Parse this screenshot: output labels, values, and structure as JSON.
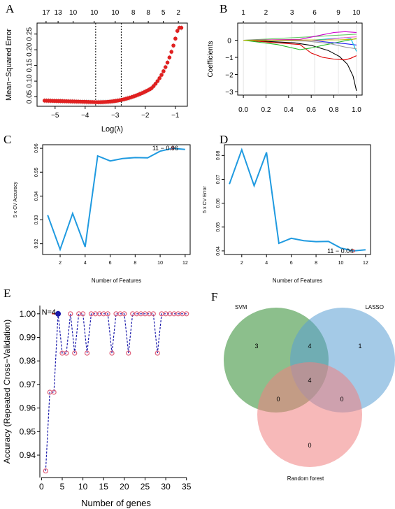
{
  "panels": {
    "A": {
      "letter": "A"
    },
    "B": {
      "letter": "B"
    },
    "C": {
      "letter": "C"
    },
    "D": {
      "letter": "D"
    },
    "E": {
      "letter": "E"
    },
    "F": {
      "letter": "F"
    }
  },
  "chart_data": [
    {
      "id": "A",
      "type": "scatter",
      "xlabel": "Log(λ)",
      "ylabel": "Mean−Squared Error",
      "xlim": [
        -5.6,
        -0.6
      ],
      "ylim": [
        0.02,
        0.285
      ],
      "xticks": [
        -5,
        -4,
        -3,
        -2,
        -1
      ],
      "yticks": [
        0.05,
        0.1,
        0.15,
        0.2,
        0.25
      ],
      "top_xticks": [
        -5.3,
        -4.9,
        -4.4,
        -3.7,
        -3.0,
        -2.4,
        -1.9,
        -1.4,
        -0.9
      ],
      "top_labels": [
        "17",
        "13",
        "10",
        "10",
        "10",
        "8",
        "8",
        "5",
        "2"
      ],
      "vlines": [
        -3.65,
        -2.8
      ],
      "points_x_start": -5.35,
      "points_x_end": -0.8,
      "n_points": 70,
      "curve_note": "",
      "color": "#e02020"
    },
    {
      "id": "B",
      "type": "line",
      "xlabel": "",
      "ylabel": "Coefficients",
      "xlim": [
        -0.05,
        1.05
      ],
      "ylim": [
        -3.2,
        1.0
      ],
      "xticks": [
        0.0,
        0.2,
        0.4,
        0.6,
        0.8,
        1.0
      ],
      "xtick_labels": [
        "0.0",
        "0.2",
        "0.4",
        "0.6",
        "0.8",
        "1.0"
      ],
      "yticks": [
        -3,
        -2,
        -1,
        0
      ],
      "ytick_labels": [
        "−3",
        "−2",
        "−1",
        "0"
      ],
      "top_xticks": [
        0.0,
        0.2,
        0.43,
        0.63,
        0.84,
        1.0
      ],
      "top_labels": [
        "1",
        "2",
        "3",
        "6",
        "9",
        "10"
      ],
      "series": [
        {
          "color": "#000000",
          "x": [
            0.0,
            0.45,
            0.6,
            0.75,
            0.85,
            0.92,
            0.97,
            1.0
          ],
          "y": [
            0,
            -0.15,
            -0.3,
            -0.6,
            -0.95,
            -1.4,
            -2.1,
            -2.95
          ]
        },
        {
          "color": "#dd0000",
          "x": [
            0.0,
            0.5,
            0.6,
            0.7,
            0.8,
            0.9,
            0.95,
            1.0
          ],
          "y": [
            0,
            -0.25,
            -0.75,
            -1.0,
            -1.1,
            -1.15,
            -1.05,
            -0.9
          ]
        },
        {
          "color": "#22bb22",
          "x": [
            0.0,
            0.3,
            0.5,
            0.6,
            0.7,
            0.85,
            1.0
          ],
          "y": [
            0,
            -0.25,
            -0.55,
            -0.45,
            -0.3,
            -0.1,
            0.1
          ]
        },
        {
          "color": "#66cc66",
          "x": [
            0.0,
            0.3,
            0.6,
            0.8,
            1.0
          ],
          "y": [
            0,
            0.1,
            0.2,
            0.28,
            0.35
          ]
        },
        {
          "color": "#cc00cc",
          "x": [
            0.0,
            0.5,
            0.6,
            0.7,
            0.8,
            0.9,
            1.0
          ],
          "y": [
            0,
            0.05,
            0.18,
            0.32,
            0.45,
            0.5,
            0.45
          ]
        },
        {
          "color": "#2222ee",
          "x": [
            0.0,
            0.6,
            0.7,
            0.8,
            0.9,
            1.0
          ],
          "y": [
            0,
            0,
            -0.08,
            -0.15,
            -0.2,
            -0.28
          ]
        },
        {
          "color": "#00bbdd",
          "x": [
            0.0,
            0.6,
            0.7,
            0.8,
            0.9,
            0.95,
            1.0
          ],
          "y": [
            0,
            0,
            0.05,
            0.1,
            0.15,
            0.1,
            -0.65
          ]
        },
        {
          "color": "#999999",
          "x": [
            0.0,
            0.55,
            0.75,
            0.9,
            1.0
          ],
          "y": [
            0,
            -0.05,
            -0.18,
            -0.4,
            -0.5
          ]
        },
        {
          "color": "#ff66cc",
          "x": [
            0.0,
            0.7,
            0.8,
            0.9,
            1.0
          ],
          "y": [
            0,
            0,
            0.08,
            0.15,
            0.2
          ]
        },
        {
          "color": "#bbbb00",
          "x": [
            0.0,
            0.85,
            0.95,
            1.0
          ],
          "y": [
            0,
            0.02,
            0.05,
            0.08
          ]
        }
      ],
      "vlines": [
        0.0,
        0.2,
        0.43,
        0.63,
        0.84,
        1.0
      ]
    },
    {
      "id": "C",
      "type": "line",
      "xlabel": "Number of Features",
      "ylabel": "5 x CV Accuracy",
      "xlim": [
        0.6,
        12.4
      ],
      "ylim": [
        0.9155,
        0.9615
      ],
      "xticks": [
        2,
        4,
        6,
        8,
        10,
        12
      ],
      "yticks": [
        0.92,
        0.93,
        0.94,
        0.95,
        0.96
      ],
      "x": [
        1,
        2,
        3,
        4,
        5,
        6,
        7,
        8,
        9,
        10,
        11,
        12
      ],
      "y": [
        0.932,
        0.9176,
        0.9327,
        0.9187,
        0.9568,
        0.9547,
        0.9557,
        0.9561,
        0.956,
        0.9588,
        0.96,
        0.9595
      ],
      "annotation": "11 − 0.96",
      "color": "#1f9ae0"
    },
    {
      "id": "D",
      "type": "line",
      "xlabel": "Number of Features",
      "ylabel": "5 x CV Error",
      "xlim": [
        0.6,
        12.4
      ],
      "ylim": [
        0.0385,
        0.0845
      ],
      "xticks": [
        2,
        4,
        6,
        8,
        10,
        12
      ],
      "yticks": [
        0.04,
        0.05,
        0.06,
        0.07,
        0.08
      ],
      "x": [
        1,
        2,
        3,
        4,
        5,
        6,
        7,
        8,
        9,
        10,
        11,
        12
      ],
      "y": [
        0.068,
        0.0824,
        0.0673,
        0.0813,
        0.0432,
        0.0453,
        0.0443,
        0.0439,
        0.044,
        0.0412,
        0.04,
        0.0405
      ],
      "annotation": "11 − 0.04",
      "color": "#1f9ae0"
    },
    {
      "id": "E",
      "type": "line",
      "xlabel": "Number of genes",
      "ylabel": "Accuracy (Repeated Cross−Validation)",
      "xlim": [
        -0.4,
        36.4
      ],
      "ylim": [
        0.9305,
        1.0035
      ],
      "xticks": [
        0,
        5,
        10,
        15,
        20,
        25,
        30,
        35
      ],
      "yticks": [
        0.94,
        0.95,
        0.96,
        0.97,
        0.98,
        0.99,
        1.0
      ],
      "x": [
        1,
        2,
        3,
        4,
        5,
        6,
        7,
        8,
        9,
        10,
        11,
        12,
        13,
        14,
        15,
        16,
        17,
        18,
        19,
        20,
        21,
        22,
        23,
        24,
        25,
        26,
        27,
        28,
        29,
        30,
        31,
        32,
        33,
        34,
        35
      ],
      "y": [
        0.9333,
        0.9667,
        0.9667,
        1.0,
        0.9833,
        0.9833,
        1.0,
        0.9833,
        1.0,
        1.0,
        0.9833,
        1.0,
        1.0,
        1.0,
        1.0,
        1.0,
        0.9833,
        1.0,
        1.0,
        1.0,
        0.9833,
        1.0,
        1.0,
        1.0,
        1.0,
        1.0,
        1.0,
        0.9833,
        1.0,
        1.0,
        1.0,
        1.0,
        1.0,
        1.0,
        1.0
      ],
      "annotation": "N=4",
      "color": "#1a1aaa",
      "marker_color": "#e0607a"
    },
    {
      "id": "F",
      "type": "venn",
      "sets": [
        {
          "name": "SVM",
          "color": "#2e8b2e"
        },
        {
          "name": "LASSO",
          "color": "#5a9fd4"
        },
        {
          "name": "Random forest",
          "color": "#f08080"
        }
      ],
      "regions": [
        {
          "sets": [
            "SVM"
          ],
          "value": "3"
        },
        {
          "sets": [
            "SVM",
            "LASSO"
          ],
          "value": "4"
        },
        {
          "sets": [
            "LASSO"
          ],
          "value": "1"
        },
        {
          "sets": [
            "SVM",
            "LASSO",
            "Random forest"
          ],
          "value": "4"
        },
        {
          "sets": [
            "SVM",
            "Random forest"
          ],
          "value": "0"
        },
        {
          "sets": [
            "LASSO",
            "Random forest"
          ],
          "value": "0"
        },
        {
          "sets": [
            "Random forest"
          ],
          "value": "0"
        }
      ]
    }
  ]
}
